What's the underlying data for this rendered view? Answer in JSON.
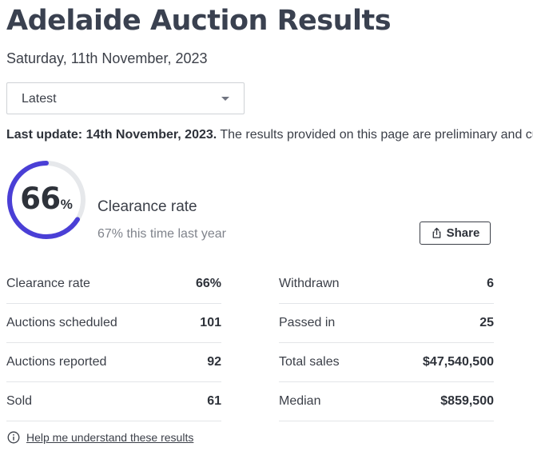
{
  "page": {
    "title": "Adelaide Auction Results",
    "date": "Saturday, 11th November, 2023"
  },
  "filter": {
    "selected": "Latest"
  },
  "notice": {
    "bold": "Last update: 14th November, 2023.",
    "text": " The results provided on this page are preliminary and cur"
  },
  "clearance": {
    "value": "66",
    "percent_sign": "%",
    "fraction": 0.66,
    "label": "Clearance rate",
    "last_year": "67% this time last year",
    "accent_color": "#4a3fd6",
    "track_color": "#e6e8eb"
  },
  "share": {
    "label": "Share",
    "icon": "share-icon"
  },
  "stats_left": [
    {
      "label": "Clearance rate",
      "value": "66%"
    },
    {
      "label": "Auctions scheduled",
      "value": "101"
    },
    {
      "label": "Auctions reported",
      "value": "92"
    },
    {
      "label": "Sold",
      "value": "61"
    }
  ],
  "stats_right": [
    {
      "label": "Withdrawn",
      "value": "6"
    },
    {
      "label": "Passed in",
      "value": "25"
    },
    {
      "label": "Total sales",
      "value": "$47,540,500"
    },
    {
      "label": "Median",
      "value": "$859,500"
    }
  ],
  "help": {
    "icon": "info-icon",
    "link": "Help me understand these results"
  }
}
